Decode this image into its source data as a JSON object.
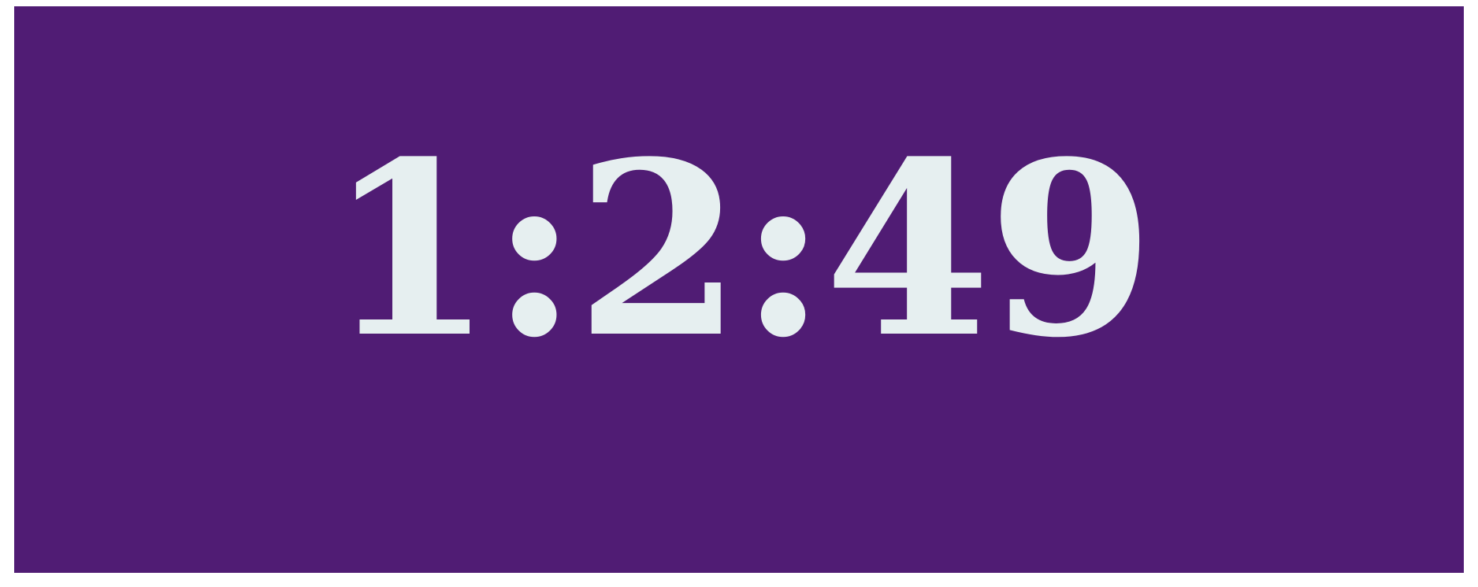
{
  "timer": {
    "display": "1:2:49",
    "background_color": "#501c74",
    "text_color": "#e6eff0"
  }
}
